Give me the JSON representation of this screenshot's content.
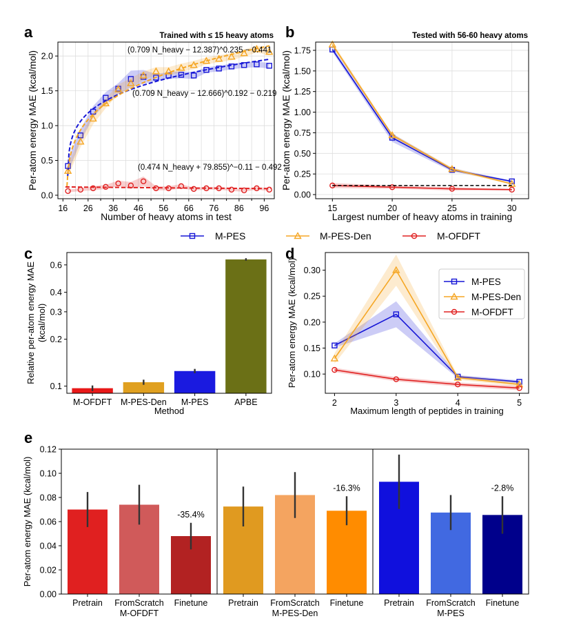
{
  "colors": {
    "mpes": "#1515d6",
    "mpesden": "#f5a623",
    "mofdft": "#e02020",
    "grid": "#dddddd"
  },
  "legend_top": {
    "items": [
      {
        "label": "M-PES",
        "key": "mpes",
        "marker": "square"
      },
      {
        "label": "M-PES-Den",
        "key": "mpesden",
        "marker": "triangle"
      },
      {
        "label": "M-OFDFT",
        "key": "mofdft",
        "marker": "circle"
      }
    ]
  },
  "chart_data": [
    {
      "panel": "a",
      "type": "line",
      "title": "Trained with ≤ 15 heavy atoms",
      "xlabel": "Number of heavy atoms in test",
      "ylabel": "Per-atom energy MAE (kcal/mol)",
      "xlim": [
        14,
        100
      ],
      "ylim": [
        -0.05,
        2.2
      ],
      "xticks": [
        16,
        26,
        36,
        46,
        56,
        66,
        76,
        86,
        96
      ],
      "xtick_labels": [
        "16",
        "26",
        "36",
        "46",
        "56",
        "66",
        "76",
        "86",
        "96"
      ],
      "extra_xticks": [
        21,
        31,
        41,
        51,
        61,
        71,
        81,
        91
      ],
      "yticks": [
        0.0,
        0.5,
        1.0,
        1.5,
        2.0
      ],
      "ytick_labels": [
        "0.0",
        "0.5",
        "1.0",
        "1.5",
        "2.0"
      ],
      "x": [
        18,
        23,
        28,
        33,
        38,
        43,
        48,
        53,
        58,
        63,
        68,
        73,
        78,
        83,
        88,
        93,
        98
      ],
      "series": [
        {
          "name": "M-PES",
          "key": "mpes",
          "marker": "square",
          "show_line": false,
          "values": [
            0.42,
            0.86,
            1.2,
            1.4,
            1.53,
            1.67,
            1.7,
            1.69,
            1.72,
            1.73,
            1.72,
            1.8,
            1.82,
            1.85,
            1.87,
            1.88,
            1.86
          ],
          "band": [
            0.1,
            0.09,
            0.08,
            0.08,
            0.08,
            0.12,
            0.1,
            0.05,
            0.05,
            0.05,
            0.05,
            0.04,
            0.04,
            0.04,
            0.04,
            0.04,
            0.04
          ]
        },
        {
          "name": "M-PES-Den",
          "key": "mpesden",
          "marker": "triangle",
          "show_line": false,
          "values": [
            0.35,
            0.77,
            1.1,
            1.32,
            1.52,
            1.61,
            1.72,
            1.78,
            1.78,
            1.83,
            1.87,
            1.93,
            1.96,
            1.99,
            2.04,
            2.1,
            2.06
          ],
          "band": [
            0.08,
            0.08,
            0.08,
            0.07,
            0.07,
            0.07,
            0.06,
            0.06,
            0.06,
            0.06,
            0.06,
            0.05,
            0.05,
            0.05,
            0.05,
            0.05,
            0.05
          ]
        },
        {
          "name": "M-OFDFT",
          "key": "mofdft",
          "marker": "circle",
          "show_line": false,
          "values": [
            0.06,
            0.08,
            0.1,
            0.12,
            0.17,
            0.14,
            0.2,
            0.1,
            0.1,
            0.13,
            0.09,
            0.1,
            0.1,
            0.08,
            0.07,
            0.1,
            0.08
          ],
          "band": [
            0.02,
            0.02,
            0.03,
            0.03,
            0.04,
            0.05,
            0.07,
            0.03,
            0.03,
            0.03,
            0.02,
            0.02,
            0.02,
            0.02,
            0.02,
            0.02,
            0.02
          ]
        }
      ],
      "fits": [
        {
          "key": "mpes",
          "label": "(0.709 N_heavy − 12.666)^0.192 − 0.219",
          "a": 0.709,
          "b": 12.666,
          "p": 0.192,
          "c": -0.219,
          "x_from": 17.9
        },
        {
          "key": "mpesden",
          "label": "(0.709 N_heavy − 12.387)^0.235 − 0.441",
          "a": 0.709,
          "b": 12.387,
          "p": 0.235,
          "c": -0.441,
          "x_from": 17.6
        },
        {
          "key": "mofdft",
          "label": "(0.474 N_heavy + 79.855)^−0.11 − 0.492",
          "a": 0.474,
          "b": -79.855,
          "p": -0.11,
          "c": -0.492,
          "x_from": 17
        }
      ]
    },
    {
      "panel": "b",
      "type": "line",
      "title": "Tested with 56-60 heavy atoms",
      "xlabel": "Largest number of heavy atoms in training",
      "ylabel": "Per-atom energy MAE (kcal/mol)",
      "xlim": [
        13.6,
        31.4
      ],
      "ylim": [
        -0.05,
        1.85
      ],
      "xticks": [
        15,
        20,
        25,
        30
      ],
      "xtick_labels": [
        "15",
        "20",
        "25",
        "30"
      ],
      "yticks": [
        0.0,
        0.25,
        0.5,
        0.75,
        1.0,
        1.25,
        1.5,
        1.75
      ],
      "ytick_labels": [
        "0.00",
        "0.25",
        "0.50",
        "0.75",
        "1.00",
        "1.25",
        "1.50",
        "1.75"
      ],
      "x": [
        15,
        20,
        25,
        30
      ],
      "series": [
        {
          "name": "M-PES",
          "key": "mpes",
          "marker": "square",
          "values": [
            1.76,
            0.69,
            0.3,
            0.16
          ],
          "band": [
            0.03,
            0.05,
            0.02,
            0.01
          ]
        },
        {
          "name": "M-PES-Den",
          "key": "mpesden",
          "marker": "triangle",
          "values": [
            1.82,
            0.72,
            0.31,
            0.13
          ],
          "band": [
            0.03,
            0.02,
            0.02,
            0.01
          ]
        },
        {
          "name": "M-OFDFT",
          "key": "mofdft",
          "marker": "circle",
          "values": [
            0.11,
            0.09,
            0.07,
            0.06
          ],
          "band": [
            0.03,
            0.02,
            0.02,
            0.01
          ]
        }
      ],
      "reference_line": {
        "y": 0.11,
        "style": "dashed",
        "color": "#000000"
      }
    },
    {
      "panel": "c",
      "type": "bar",
      "xlabel": "Method",
      "ylabel": [
        "Relative per-atom energy MAE",
        "(kcal/mol)"
      ],
      "yscale": "log",
      "ylim": [
        0.09,
        0.72
      ],
      "yticks": [
        0.1,
        0.2,
        0.3,
        0.4,
        0.6
      ],
      "ytick_labels": [
        "0.1",
        "0.2",
        "0.3",
        "0.4",
        "0.6"
      ],
      "categories": [
        "M-OFDFT",
        "M-PES-Den",
        "M-PES",
        "APBE"
      ],
      "values": [
        0.097,
        0.106,
        0.125,
        0.65
      ],
      "errors": [
        0.004,
        0.004,
        0.004,
        0.012
      ],
      "colors": [
        "#e81818",
        "#e0a020",
        "#1a1ae0",
        "#6b7016"
      ]
    },
    {
      "panel": "d",
      "type": "line",
      "xlabel": "Maximum length of peptides in training",
      "ylabel": "Per-atom energy MAE (kcal/mol)",
      "xlim": [
        1.85,
        5.15
      ],
      "ylim": [
        0.063,
        0.334
      ],
      "xticks": [
        2,
        3,
        4,
        5
      ],
      "xtick_labels": [
        "2",
        "3",
        "4",
        "5"
      ],
      "yticks": [
        0.1,
        0.15,
        0.2,
        0.25,
        0.3
      ],
      "ytick_labels": [
        "0.10",
        "0.15",
        "0.20",
        "0.25",
        "0.30"
      ],
      "x": [
        2,
        3,
        4,
        5
      ],
      "legend": "top-right",
      "series": [
        {
          "name": "M-PES",
          "key": "mpes",
          "marker": "square",
          "values": [
            0.155,
            0.215,
            0.095,
            0.085
          ],
          "band": [
            0.004,
            0.025,
            0.003,
            0.003
          ]
        },
        {
          "name": "M-PES-Den",
          "key": "mpesden",
          "marker": "triangle",
          "values": [
            0.13,
            0.3,
            0.093,
            0.08
          ],
          "band": [
            0.01,
            0.03,
            0.004,
            0.004
          ]
        },
        {
          "name": "M-OFDFT",
          "key": "mofdft",
          "marker": "circle",
          "values": [
            0.108,
            0.09,
            0.08,
            0.073
          ],
          "band": [
            0.004,
            0.004,
            0.004,
            0.004
          ]
        }
      ]
    },
    {
      "panel": "e",
      "type": "bar",
      "ylabel": "Per-atom energy MAE (kcal/mol)",
      "ylim": [
        0.0,
        0.12
      ],
      "yticks": [
        0.0,
        0.02,
        0.04,
        0.06,
        0.08,
        0.1,
        0.12
      ],
      "ytick_labels": [
        "0.00",
        "0.02",
        "0.04",
        "0.06",
        "0.08",
        "0.10",
        "0.12"
      ],
      "groups": [
        {
          "name": "M-OFDFT",
          "categories": [
            "Pretrain",
            "FromScratch",
            "Finetune"
          ],
          "values": [
            0.07,
            0.074,
            0.048
          ],
          "errors": [
            0.0145,
            0.0165,
            0.011
          ],
          "colors": [
            "#e02020",
            "#d05a5a",
            "#b22222"
          ],
          "annotation": "-35.4%"
        },
        {
          "name": "M-PES-Den",
          "categories": [
            "Pretrain",
            "FromScratch",
            "Finetune"
          ],
          "values": [
            0.0725,
            0.082,
            0.069
          ],
          "errors": [
            0.0165,
            0.019,
            0.012
          ],
          "colors": [
            "#e09a20",
            "#f4a460",
            "#ff8c00"
          ],
          "annotation": "-16.3%"
        },
        {
          "name": "M-PES",
          "categories": [
            "Pretrain",
            "FromScratch",
            "Finetune"
          ],
          "values": [
            0.093,
            0.0675,
            0.0655
          ],
          "errors": [
            0.0225,
            0.0145,
            0.0155
          ],
          "colors": [
            "#1010dd",
            "#4169e1",
            "#00008b"
          ],
          "annotation": "-2.8%"
        }
      ]
    }
  ]
}
